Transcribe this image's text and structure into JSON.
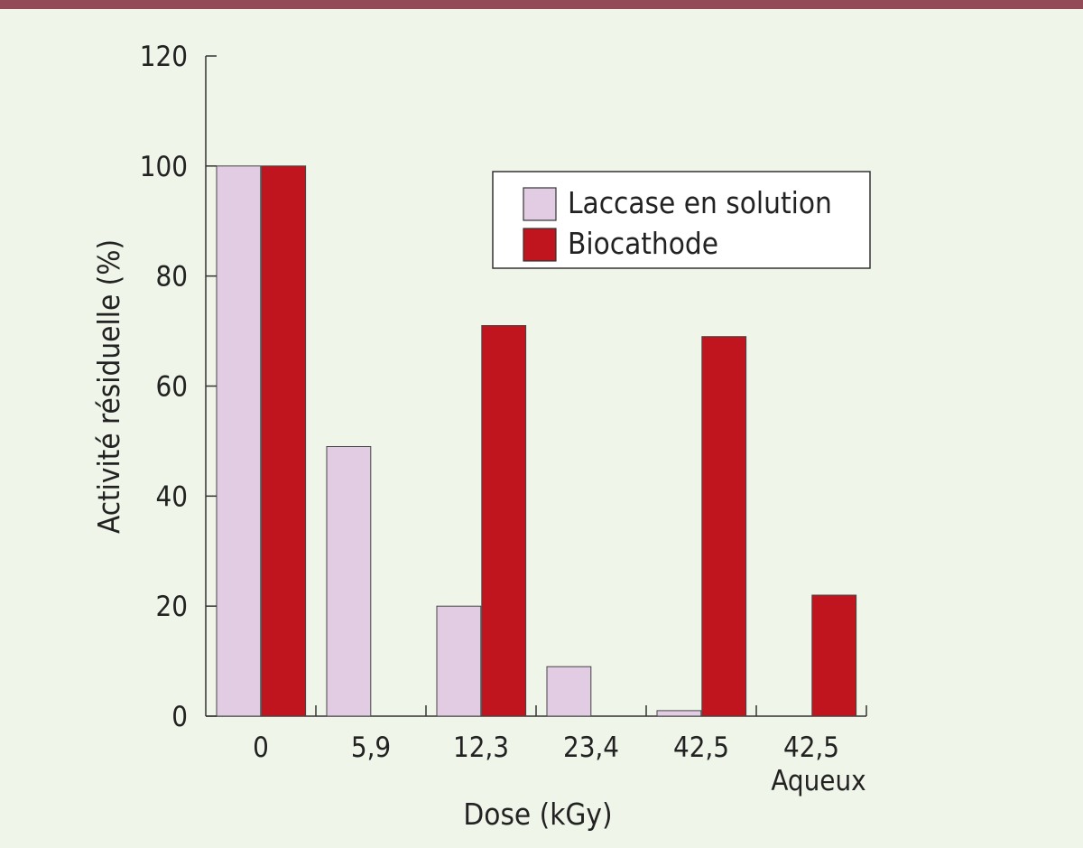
{
  "chart_data": {
    "type": "bar",
    "title": "",
    "xlabel": "Dose (kGy)",
    "ylabel": "Activité résiduelle (%)",
    "ylim": [
      0,
      120
    ],
    "yticks": [
      "0",
      "20",
      "40",
      "60",
      "80",
      "100",
      "120"
    ],
    "categories": [
      {
        "line1": "0",
        "line2": ""
      },
      {
        "line1": "5,9",
        "line2": ""
      },
      {
        "line1": "12,3",
        "line2": ""
      },
      {
        "line1": "23,4",
        "line2": ""
      },
      {
        "line1": "42,5",
        "line2": ""
      },
      {
        "line1": "42,5",
        "line2": "Aqueux"
      }
    ],
    "series": [
      {
        "name": "Laccase en solution",
        "color": "#e2cce3",
        "values": [
          100,
          49,
          20,
          9,
          1,
          0
        ]
      },
      {
        "name": "Biocathode",
        "color": "#c0141e",
        "values": [
          100,
          0,
          71,
          0,
          69,
          22
        ]
      }
    ],
    "legend_position": "top-right",
    "grid": false
  }
}
